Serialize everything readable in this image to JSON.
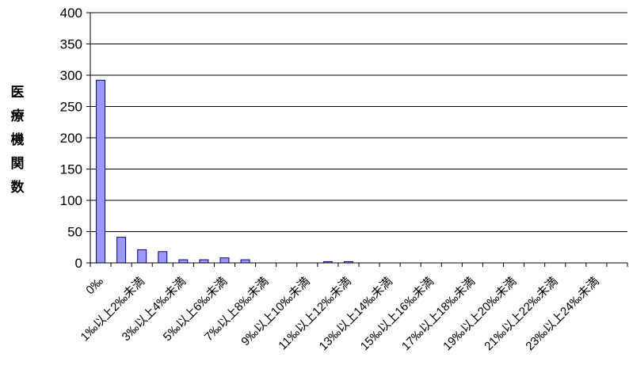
{
  "chart_data": {
    "type": "bar",
    "ylabel": "医療機関数",
    "ylim": [
      0,
      400
    ],
    "yticks": [
      0,
      50,
      100,
      150,
      200,
      250,
      300,
      350,
      400
    ],
    "grid": true,
    "legend": "none",
    "bar_color": "#9999ff",
    "bar_edge": "#000080",
    "categories": [
      "0‰",
      "",
      "1‰以上2‰未満",
      "",
      "3‰以上4‰未満",
      "",
      "5‰以上6‰未満",
      "",
      "7‰以上8‰未満",
      "",
      "9‰以上10‰未満",
      "",
      "11‰以上12‰未満",
      "",
      "13‰以上14‰未満",
      "",
      "15‰以上16‰未満",
      "",
      "17‰以上18‰未満",
      "",
      "19‰以上20‰未満",
      "",
      "21‰以上22‰未満",
      "",
      "23‰以上24‰未満",
      ""
    ],
    "values": [
      292,
      41,
      21,
      18,
      5,
      5,
      8,
      5,
      0,
      0,
      0,
      2,
      2,
      0,
      0,
      0,
      0,
      0,
      0,
      0,
      0,
      0,
      0,
      0,
      0,
      0
    ]
  }
}
